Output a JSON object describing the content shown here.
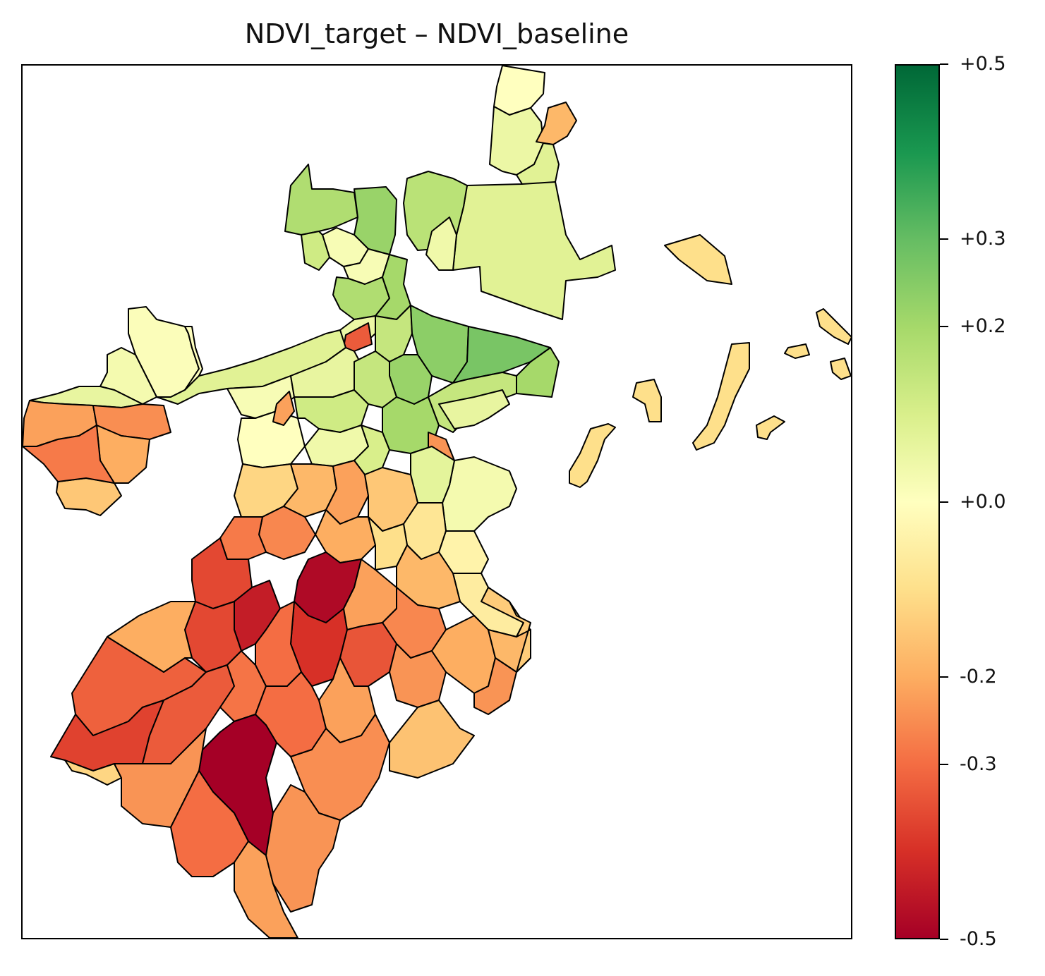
{
  "title": "NDVI_target – NDVI_baseline",
  "colorbar": {
    "min": -0.5,
    "max": 0.5,
    "colormap": "RdYlGn",
    "stops": [
      "#a50026",
      "#d73027",
      "#f46d43",
      "#fdae61",
      "#fee08b",
      "#ffffbf",
      "#d9ef8b",
      "#a6d96a",
      "#66bd63",
      "#1a9850",
      "#006837"
    ],
    "ticks": [
      {
        "value": 0.5,
        "label": "+0.5"
      },
      {
        "value": 0.3,
        "label": "+0.3"
      },
      {
        "value": 0.2,
        "label": "+0.2"
      },
      {
        "value": 0.0,
        "label": "+0.0"
      },
      {
        "value": -0.2,
        "label": "-0.2"
      },
      {
        "value": -0.3,
        "label": "-0.3"
      },
      {
        "value": -0.5,
        "label": "-0.5"
      }
    ]
  },
  "map": {
    "edge_color": "#000000",
    "regions": [
      {
        "id": "north-1",
        "value": 0.0
      },
      {
        "id": "north-2",
        "value": 0.05
      },
      {
        "id": "north-island-tip",
        "value": -0.18
      },
      {
        "id": "north-3",
        "value": 0.08
      },
      {
        "id": "north-east-large",
        "value": 0.08
      },
      {
        "id": "north-center-1",
        "value": 0.18
      },
      {
        "id": "north-center-2",
        "value": 0.22
      },
      {
        "id": "north-center-3",
        "value": 0.16
      },
      {
        "id": "north-small-1",
        "value": 0.02
      },
      {
        "id": "north-small-2",
        "value": 0.04
      },
      {
        "id": "north-small-3",
        "value": 0.12
      },
      {
        "id": "north-small-4",
        "value": 0.02
      },
      {
        "id": "upper-mid-1",
        "value": 0.18
      },
      {
        "id": "upper-mid-2",
        "value": 0.2
      },
      {
        "id": "upper-mid-3",
        "value": 0.05
      },
      {
        "id": "upper-mid-4",
        "value": 0.14
      },
      {
        "id": "red-spot",
        "value": -0.33
      },
      {
        "id": "east-green-1",
        "value": 0.24
      },
      {
        "id": "east-green-2",
        "value": 0.27
      },
      {
        "id": "east-green-3",
        "value": 0.2
      },
      {
        "id": "east-green-4",
        "value": 0.22
      },
      {
        "id": "west-1",
        "value": 0.01
      },
      {
        "id": "west-2",
        "value": 0.03
      },
      {
        "id": "west-3",
        "value": 0.06
      },
      {
        "id": "west-4",
        "value": 0.0
      },
      {
        "id": "west-corridor",
        "value": 0.08
      },
      {
        "id": "west-orange-1",
        "value": -0.22
      },
      {
        "id": "west-orange-2",
        "value": -0.25
      },
      {
        "id": "west-orange-3",
        "value": -0.15
      },
      {
        "id": "west-orange-4",
        "value": -0.2
      },
      {
        "id": "west-orange-5",
        "value": -0.28
      },
      {
        "id": "central-1",
        "value": 0.02
      },
      {
        "id": "central-2",
        "value": 0.0
      },
      {
        "id": "central-3",
        "value": 0.06
      },
      {
        "id": "central-4",
        "value": 0.12
      },
      {
        "id": "central-5",
        "value": -0.22
      },
      {
        "id": "central-6",
        "value": 0.14
      },
      {
        "id": "central-7",
        "value": 0.04
      },
      {
        "id": "central-8",
        "value": 0.2
      },
      {
        "id": "central-9",
        "value": 0.1
      },
      {
        "id": "central-10",
        "value": -0.24
      },
      {
        "id": "central-11",
        "value": 0.14
      },
      {
        "id": "central-12",
        "value": 0.06
      },
      {
        "id": "east-land-1",
        "value": 0.03
      },
      {
        "id": "east-land-2",
        "value": 0.07
      },
      {
        "id": "mid-1",
        "value": -0.12
      },
      {
        "id": "mid-2",
        "value": -0.18
      },
      {
        "id": "mid-3",
        "value": -0.22
      },
      {
        "id": "mid-4",
        "value": -0.15
      },
      {
        "id": "mid-5",
        "value": -0.08
      },
      {
        "id": "mid-6",
        "value": -0.04
      },
      {
        "id": "mid-7",
        "value": -0.2
      },
      {
        "id": "mid-8",
        "value": -0.26
      },
      {
        "id": "mid-9",
        "value": -0.1
      },
      {
        "id": "mid-10",
        "value": -0.06
      },
      {
        "id": "mid-11",
        "value": -0.18
      },
      {
        "id": "mid-12",
        "value": -0.28
      },
      {
        "id": "south-red-1",
        "value": -0.36
      },
      {
        "id": "south-red-2",
        "value": -0.44
      },
      {
        "id": "south-red-3",
        "value": -0.48
      },
      {
        "id": "south-red-4",
        "value": -0.36
      },
      {
        "id": "south-red-5",
        "value": -0.4
      },
      {
        "id": "south-1",
        "value": -0.22
      },
      {
        "id": "south-2",
        "value": -0.26
      },
      {
        "id": "south-3",
        "value": -0.3
      },
      {
        "id": "south-4",
        "value": -0.34
      },
      {
        "id": "south-5",
        "value": -0.24
      },
      {
        "id": "south-6",
        "value": -0.2
      },
      {
        "id": "south-7",
        "value": -0.18
      },
      {
        "id": "south-8",
        "value": -0.22
      },
      {
        "id": "south-9",
        "value": -0.14
      },
      {
        "id": "south-10",
        "value": -0.24
      },
      {
        "id": "sw-1",
        "value": -0.32
      },
      {
        "id": "sw-2",
        "value": -0.37
      },
      {
        "id": "sw-3",
        "value": -0.2
      },
      {
        "id": "sw-4",
        "value": -0.12
      },
      {
        "id": "sw-5",
        "value": -0.33
      },
      {
        "id": "sw-6",
        "value": -0.29
      },
      {
        "id": "sw-7",
        "value": -0.5
      },
      {
        "id": "sw-8",
        "value": -0.3
      },
      {
        "id": "sw-9",
        "value": -0.24
      },
      {
        "id": "sw-10",
        "value": -0.3
      },
      {
        "id": "sw-11",
        "value": -0.25
      },
      {
        "id": "sw-12",
        "value": -0.22
      },
      {
        "id": "se-1",
        "value": -0.24
      },
      {
        "id": "se-2",
        "value": -0.16
      },
      {
        "id": "island-1",
        "value": -0.1
      },
      {
        "id": "island-2",
        "value": -0.1
      },
      {
        "id": "island-3",
        "value": -0.1
      },
      {
        "id": "island-4",
        "value": -0.1
      },
      {
        "id": "island-5",
        "value": -0.1
      },
      {
        "id": "island-6",
        "value": -0.1
      },
      {
        "id": "island-7",
        "value": -0.1
      },
      {
        "id": "island-8",
        "value": -0.1
      }
    ]
  }
}
